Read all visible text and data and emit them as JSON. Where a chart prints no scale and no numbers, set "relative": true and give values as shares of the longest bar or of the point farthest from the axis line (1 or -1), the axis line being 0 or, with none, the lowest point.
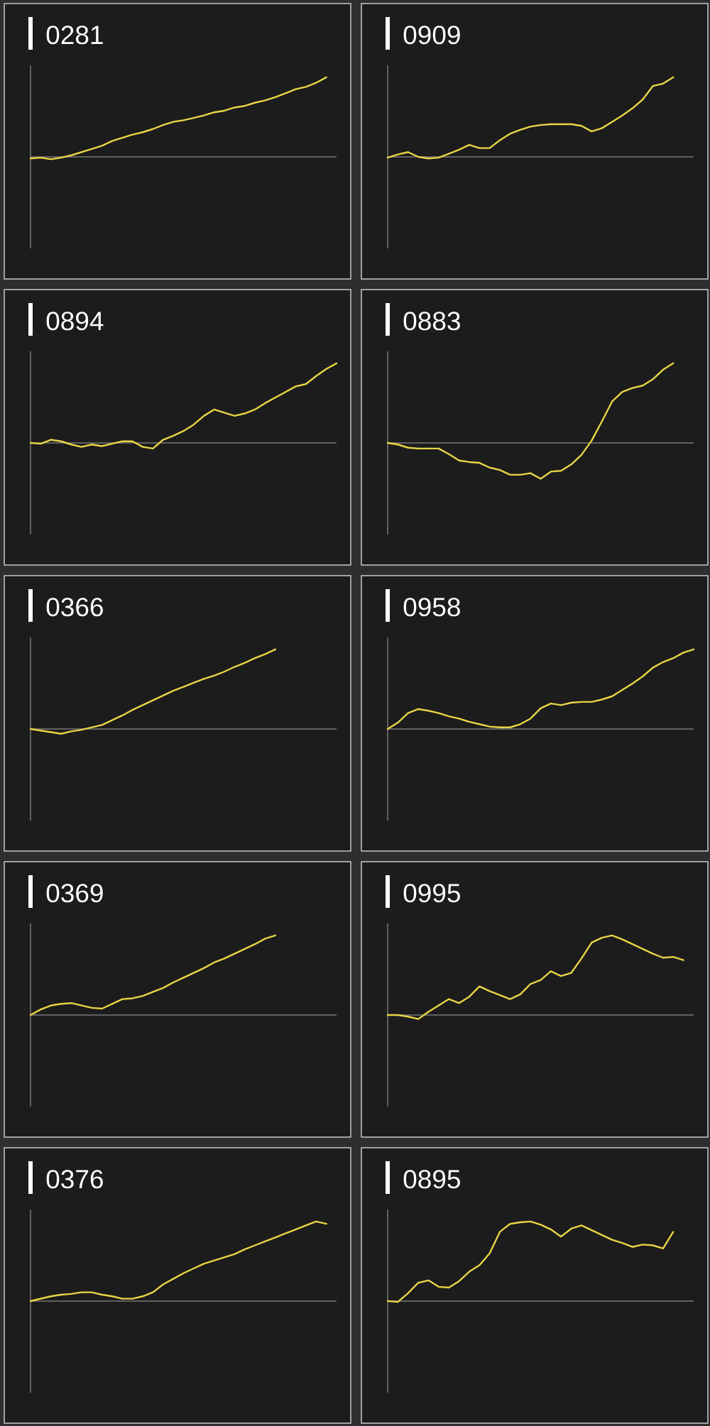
{
  "chart_data": [
    {
      "type": "line",
      "title": "0281",
      "relative": true,
      "color": "#e8d545",
      "categories": [
        null,
        null,
        null,
        null,
        null,
        null,
        null,
        null,
        null,
        null,
        null,
        null,
        null,
        null,
        null,
        null,
        null,
        null,
        null,
        null,
        null,
        null,
        null,
        null,
        null,
        null,
        null,
        null,
        null,
        null,
        null
      ],
      "values": [
        -0.02,
        -0.01,
        -0.03,
        -0.01,
        0.02,
        0.06,
        0.1,
        0.14,
        0.2,
        0.24,
        0.28,
        0.31,
        0.35,
        0.4,
        0.44,
        0.46,
        0.49,
        0.52,
        0.56,
        0.58,
        0.62,
        0.64,
        0.68,
        0.71,
        0.75,
        0.8,
        0.85,
        0.88,
        0.93,
        1.0,
        null
      ]
    },
    {
      "type": "line",
      "title": "0909",
      "relative": true,
      "color": "#e8d545",
      "categories": [
        null,
        null,
        null,
        null,
        null,
        null,
        null,
        null,
        null,
        null,
        null,
        null,
        null,
        null,
        null,
        null,
        null,
        null,
        null,
        null,
        null,
        null,
        null,
        null,
        null,
        null,
        null,
        null,
        null,
        null,
        null
      ],
      "values": [
        -0.01,
        0.03,
        0.06,
        0,
        -0.02,
        -0.01,
        0.04,
        0.09,
        0.15,
        0.11,
        0.11,
        0.21,
        0.29,
        0.34,
        0.38,
        0.4,
        0.41,
        0.41,
        0.41,
        0.39,
        0.32,
        0.36,
        0.44,
        0.52,
        0.61,
        0.72,
        0.89,
        0.92,
        1.0,
        null,
        null
      ]
    },
    {
      "type": "line",
      "title": "0894",
      "relative": true,
      "color": "#e8d545",
      "categories": [
        null,
        null,
        null,
        null,
        null,
        null,
        null,
        null,
        null,
        null,
        null,
        null,
        null,
        null,
        null,
        null,
        null,
        null,
        null,
        null,
        null,
        null,
        null,
        null,
        null,
        null,
        null,
        null,
        null,
        null,
        null
      ],
      "values": [
        0,
        -0.01,
        0.04,
        0.02,
        -0.02,
        -0.05,
        -0.02,
        -0.04,
        -0.01,
        0.02,
        0.02,
        -0.05,
        -0.07,
        0.04,
        0.09,
        0.15,
        0.23,
        0.34,
        0.42,
        0.38,
        0.34,
        0.37,
        0.42,
        0.5,
        0.57,
        0.64,
        0.71,
        0.74,
        0.84,
        0.93,
        1.0
      ]
    },
    {
      "type": "line",
      "title": "0883",
      "relative": true,
      "color": "#e8d545",
      "categories": [
        null,
        null,
        null,
        null,
        null,
        null,
        null,
        null,
        null,
        null,
        null,
        null,
        null,
        null,
        null,
        null,
        null,
        null,
        null,
        null,
        null,
        null,
        null,
        null,
        null,
        null,
        null,
        null,
        null,
        null,
        null
      ],
      "values": [
        0,
        -0.02,
        -0.06,
        -0.07,
        -0.07,
        -0.07,
        -0.14,
        -0.22,
        -0.24,
        -0.25,
        -0.31,
        -0.34,
        -0.4,
        -0.4,
        -0.38,
        -0.45,
        -0.36,
        -0.35,
        -0.27,
        -0.15,
        0.03,
        0.27,
        0.52,
        0.64,
        0.69,
        0.72,
        0.8,
        0.92,
        1.0,
        null,
        null
      ]
    },
    {
      "type": "line",
      "title": "0366",
      "relative": true,
      "color": "#e8d545",
      "categories": [
        null,
        null,
        null,
        null,
        null,
        null,
        null,
        null,
        null,
        null,
        null,
        null,
        null,
        null,
        null,
        null,
        null,
        null,
        null,
        null,
        null,
        null,
        null,
        null,
        null,
        null,
        null,
        null,
        null,
        null,
        null
      ],
      "values": [
        0,
        -0.02,
        -0.04,
        -0.06,
        -0.03,
        -0.01,
        0.02,
        0.05,
        0.11,
        0.17,
        0.24,
        0.3,
        0.36,
        0.42,
        0.48,
        0.53,
        0.58,
        0.63,
        0.67,
        0.72,
        0.78,
        0.83,
        0.89,
        0.94,
        1.0,
        null,
        null,
        null,
        null,
        null,
        null
      ]
    },
    {
      "type": "line",
      "title": "0958",
      "relative": true,
      "color": "#e8d545",
      "categories": [
        null,
        null,
        null,
        null,
        null,
        null,
        null,
        null,
        null,
        null,
        null,
        null,
        null,
        null,
        null,
        null,
        null,
        null,
        null,
        null,
        null,
        null,
        null,
        null,
        null,
        null,
        null,
        null,
        null,
        null,
        null
      ],
      "values": [
        0,
        0.08,
        0.2,
        0.25,
        0.23,
        0.2,
        0.16,
        0.13,
        0.09,
        0.06,
        0.03,
        0.02,
        0.02,
        0.06,
        0.13,
        0.26,
        0.32,
        0.3,
        0.33,
        0.34,
        0.34,
        0.37,
        0.41,
        0.49,
        0.57,
        0.66,
        0.77,
        0.84,
        0.89,
        0.96,
        1.0
      ]
    },
    {
      "type": "line",
      "title": "0369",
      "relative": true,
      "color": "#e8d545",
      "categories": [
        null,
        null,
        null,
        null,
        null,
        null,
        null,
        null,
        null,
        null,
        null,
        null,
        null,
        null,
        null,
        null,
        null,
        null,
        null,
        null,
        null,
        null,
        null,
        null,
        null,
        null,
        null,
        null,
        null,
        null,
        null
      ],
      "values": [
        0,
        0.07,
        0.12,
        0.14,
        0.15,
        0.12,
        0.09,
        0.08,
        0.14,
        0.2,
        0.21,
        0.24,
        0.29,
        0.34,
        0.41,
        0.47,
        0.53,
        0.59,
        0.66,
        0.71,
        0.77,
        0.83,
        0.89,
        0.96,
        1.0,
        null,
        null,
        null,
        null,
        null,
        null
      ]
    },
    {
      "type": "line",
      "title": "0995",
      "relative": true,
      "color": "#e8d545",
      "categories": [
        null,
        null,
        null,
        null,
        null,
        null,
        null,
        null,
        null,
        null,
        null,
        null,
        null,
        null,
        null,
        null,
        null,
        null,
        null,
        null,
        null,
        null,
        null,
        null,
        null,
        null,
        null,
        null,
        null,
        null,
        null
      ],
      "values": [
        0,
        0,
        -0.02,
        -0.05,
        0.04,
        0.12,
        0.2,
        0.15,
        0.23,
        0.36,
        0.3,
        0.25,
        0.2,
        0.26,
        0.39,
        0.44,
        0.55,
        0.49,
        0.53,
        0.71,
        0.91,
        0.97,
        1.0,
        0.95,
        0.89,
        0.83,
        0.77,
        0.72,
        0.73,
        0.69,
        null
      ]
    },
    {
      "type": "line",
      "title": "0376",
      "relative": true,
      "color": "#e8d545",
      "categories": [
        null,
        null,
        null,
        null,
        null,
        null,
        null,
        null,
        null,
        null,
        null,
        null,
        null,
        null,
        null,
        null,
        null,
        null,
        null,
        null,
        null,
        null,
        null,
        null,
        null,
        null,
        null,
        null,
        null,
        null,
        null
      ],
      "values": [
        0,
        0.03,
        0.06,
        0.08,
        0.09,
        0.11,
        0.11,
        0.08,
        0.06,
        0.03,
        0.03,
        0.06,
        0.11,
        0.21,
        0.28,
        0.35,
        0.41,
        0.47,
        0.51,
        0.55,
        0.59,
        0.65,
        0.7,
        0.75,
        0.8,
        0.85,
        0.9,
        0.95,
        1.0,
        0.97,
        null
      ]
    },
    {
      "type": "line",
      "title": "0895",
      "relative": true,
      "color": "#e8d545",
      "categories": [
        null,
        null,
        null,
        null,
        null,
        null,
        null,
        null,
        null,
        null,
        null,
        null,
        null,
        null,
        null,
        null,
        null,
        null,
        null,
        null,
        null,
        null,
        null,
        null,
        null,
        null,
        null,
        null,
        null,
        null,
        null
      ],
      "values": [
        0,
        -0.01,
        0.1,
        0.23,
        0.26,
        0.18,
        0.17,
        0.25,
        0.37,
        0.45,
        0.6,
        0.87,
        0.97,
        0.99,
        1.0,
        0.96,
        0.9,
        0.81,
        0.91,
        0.95,
        0.89,
        0.83,
        0.77,
        0.73,
        0.68,
        0.71,
        0.7,
        0.66,
        0.87,
        null,
        null
      ]
    }
  ]
}
